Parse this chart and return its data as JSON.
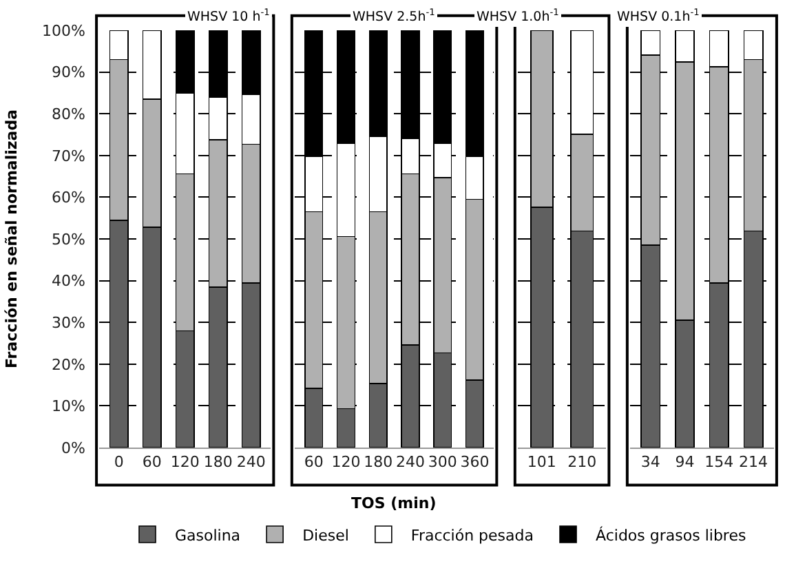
{
  "chart_data": [
    {
      "type": "bar",
      "stacked": true,
      "title": "WHSV 10 h$^{-1}$",
      "ylabel": "Fracción en señal normalizada",
      "legend": "bottom",
      "grid": "y",
      "ylim": [
        0,
        100
      ],
      "yticks": [
        {
          "value": 0,
          "label": "0%"
        },
        {
          "value": 10,
          "label": "10%"
        },
        {
          "value": 20,
          "label": "20%"
        },
        {
          "value": 30,
          "label": "30%"
        },
        {
          "value": 40,
          "label": "40%"
        },
        {
          "value": 50,
          "label": "50%"
        },
        {
          "value": 60,
          "label": "60%"
        },
        {
          "value": 70,
          "label": "70%"
        },
        {
          "value": 80,
          "label": "80%"
        },
        {
          "value": 90,
          "label": "90%"
        },
        {
          "value": 100,
          "label": "100%"
        }
      ],
      "categories": [
        "0",
        "60",
        "120",
        "180",
        "240"
      ],
      "series": [
        {
          "name": "Gasolina",
          "color": "#606060",
          "values": [
            54.5,
            52.8,
            28,
            38.5,
            39.4
          ]
        },
        {
          "name": "Diesel",
          "color": "#b0b0b0",
          "values": [
            38.5,
            30.7,
            37.6,
            35.3,
            33.3
          ]
        },
        {
          "name": "Fracción pesada",
          "color": "#ffffff",
          "values": [
            7,
            16.5,
            19.3,
            10.2,
            11.9
          ]
        },
        {
          "name": "Ácidos grasos libres",
          "color": "#000000",
          "values": [
            0,
            0,
            15.1,
            16,
            15.4
          ]
        }
      ]
    },
    {
      "type": "bar",
      "stacked": true,
      "title": "WHSV 2.5h$^{-1}$",
      "xlabel": "TOS (min)",
      "grid": "y",
      "tick_labels": "x",
      "ylim": [
        0,
        100
      ],
      "yticks": [
        0,
        10,
        20,
        30,
        40,
        50,
        60,
        70,
        80,
        90,
        100
      ],
      "categories": [
        "60",
        "120",
        "180",
        "240",
        "300",
        "360"
      ],
      "series": [
        {
          "color": "#606060",
          "values": [
            14.2,
            9.3,
            15.3,
            24.6,
            22.7,
            16.2
          ]
        },
        {
          "color": "#b0b0b0",
          "values": [
            42.3,
            41.3,
            41.2,
            41,
            42,
            43.3
          ]
        },
        {
          "color": "#ffffff",
          "values": [
            13.3,
            22.3,
            18.1,
            8.4,
            8.2,
            10.3
          ]
        },
        {
          "color": "#000000",
          "values": [
            30.2,
            27.1,
            25.4,
            26,
            27.1,
            30.2
          ]
        }
      ]
    },
    {
      "type": "bar",
      "stacked": true,
      "title": "WHSV 1.0h$^{-1}$",
      "grid": "y",
      "tick_labels": "x",
      "ylim": [
        0,
        100
      ],
      "yticks": [
        0,
        10,
        20,
        30,
        40,
        50,
        60,
        70,
        80,
        90,
        100
      ],
      "categories": [
        "101",
        "210"
      ],
      "series": [
        {
          "color": "#606060",
          "values": [
            57.6,
            51.9
          ]
        },
        {
          "color": "#b0b0b0",
          "values": [
            42.4,
            23.2
          ]
        },
        {
          "color": "#ffffff",
          "values": [
            0,
            24.9
          ]
        },
        {
          "color": "#000000",
          "values": [
            0,
            0
          ]
        }
      ]
    },
    {
      "type": "bar",
      "stacked": true,
      "title": "WHSV 0.1h$^{-1}$",
      "grid": "y",
      "tick_labels": "x",
      "ylim": [
        0,
        100
      ],
      "yticks": [
        0,
        10,
        20,
        30,
        40,
        50,
        60,
        70,
        80,
        90,
        100
      ],
      "categories": [
        "34",
        "94",
        "154",
        "214"
      ],
      "series": [
        {
          "color": "#606060",
          "values": [
            48.5,
            30.5,
            39.4,
            51.9
          ]
        },
        {
          "color": "#b0b0b0",
          "values": [
            45.6,
            61.9,
            51.9,
            41.1
          ]
        },
        {
          "color": "#ffffff",
          "values": [
            5.9,
            7.6,
            8.7,
            7
          ]
        },
        {
          "color": "#000000",
          "values": [
            0,
            0,
            0,
            0
          ]
        }
      ]
    }
  ]
}
